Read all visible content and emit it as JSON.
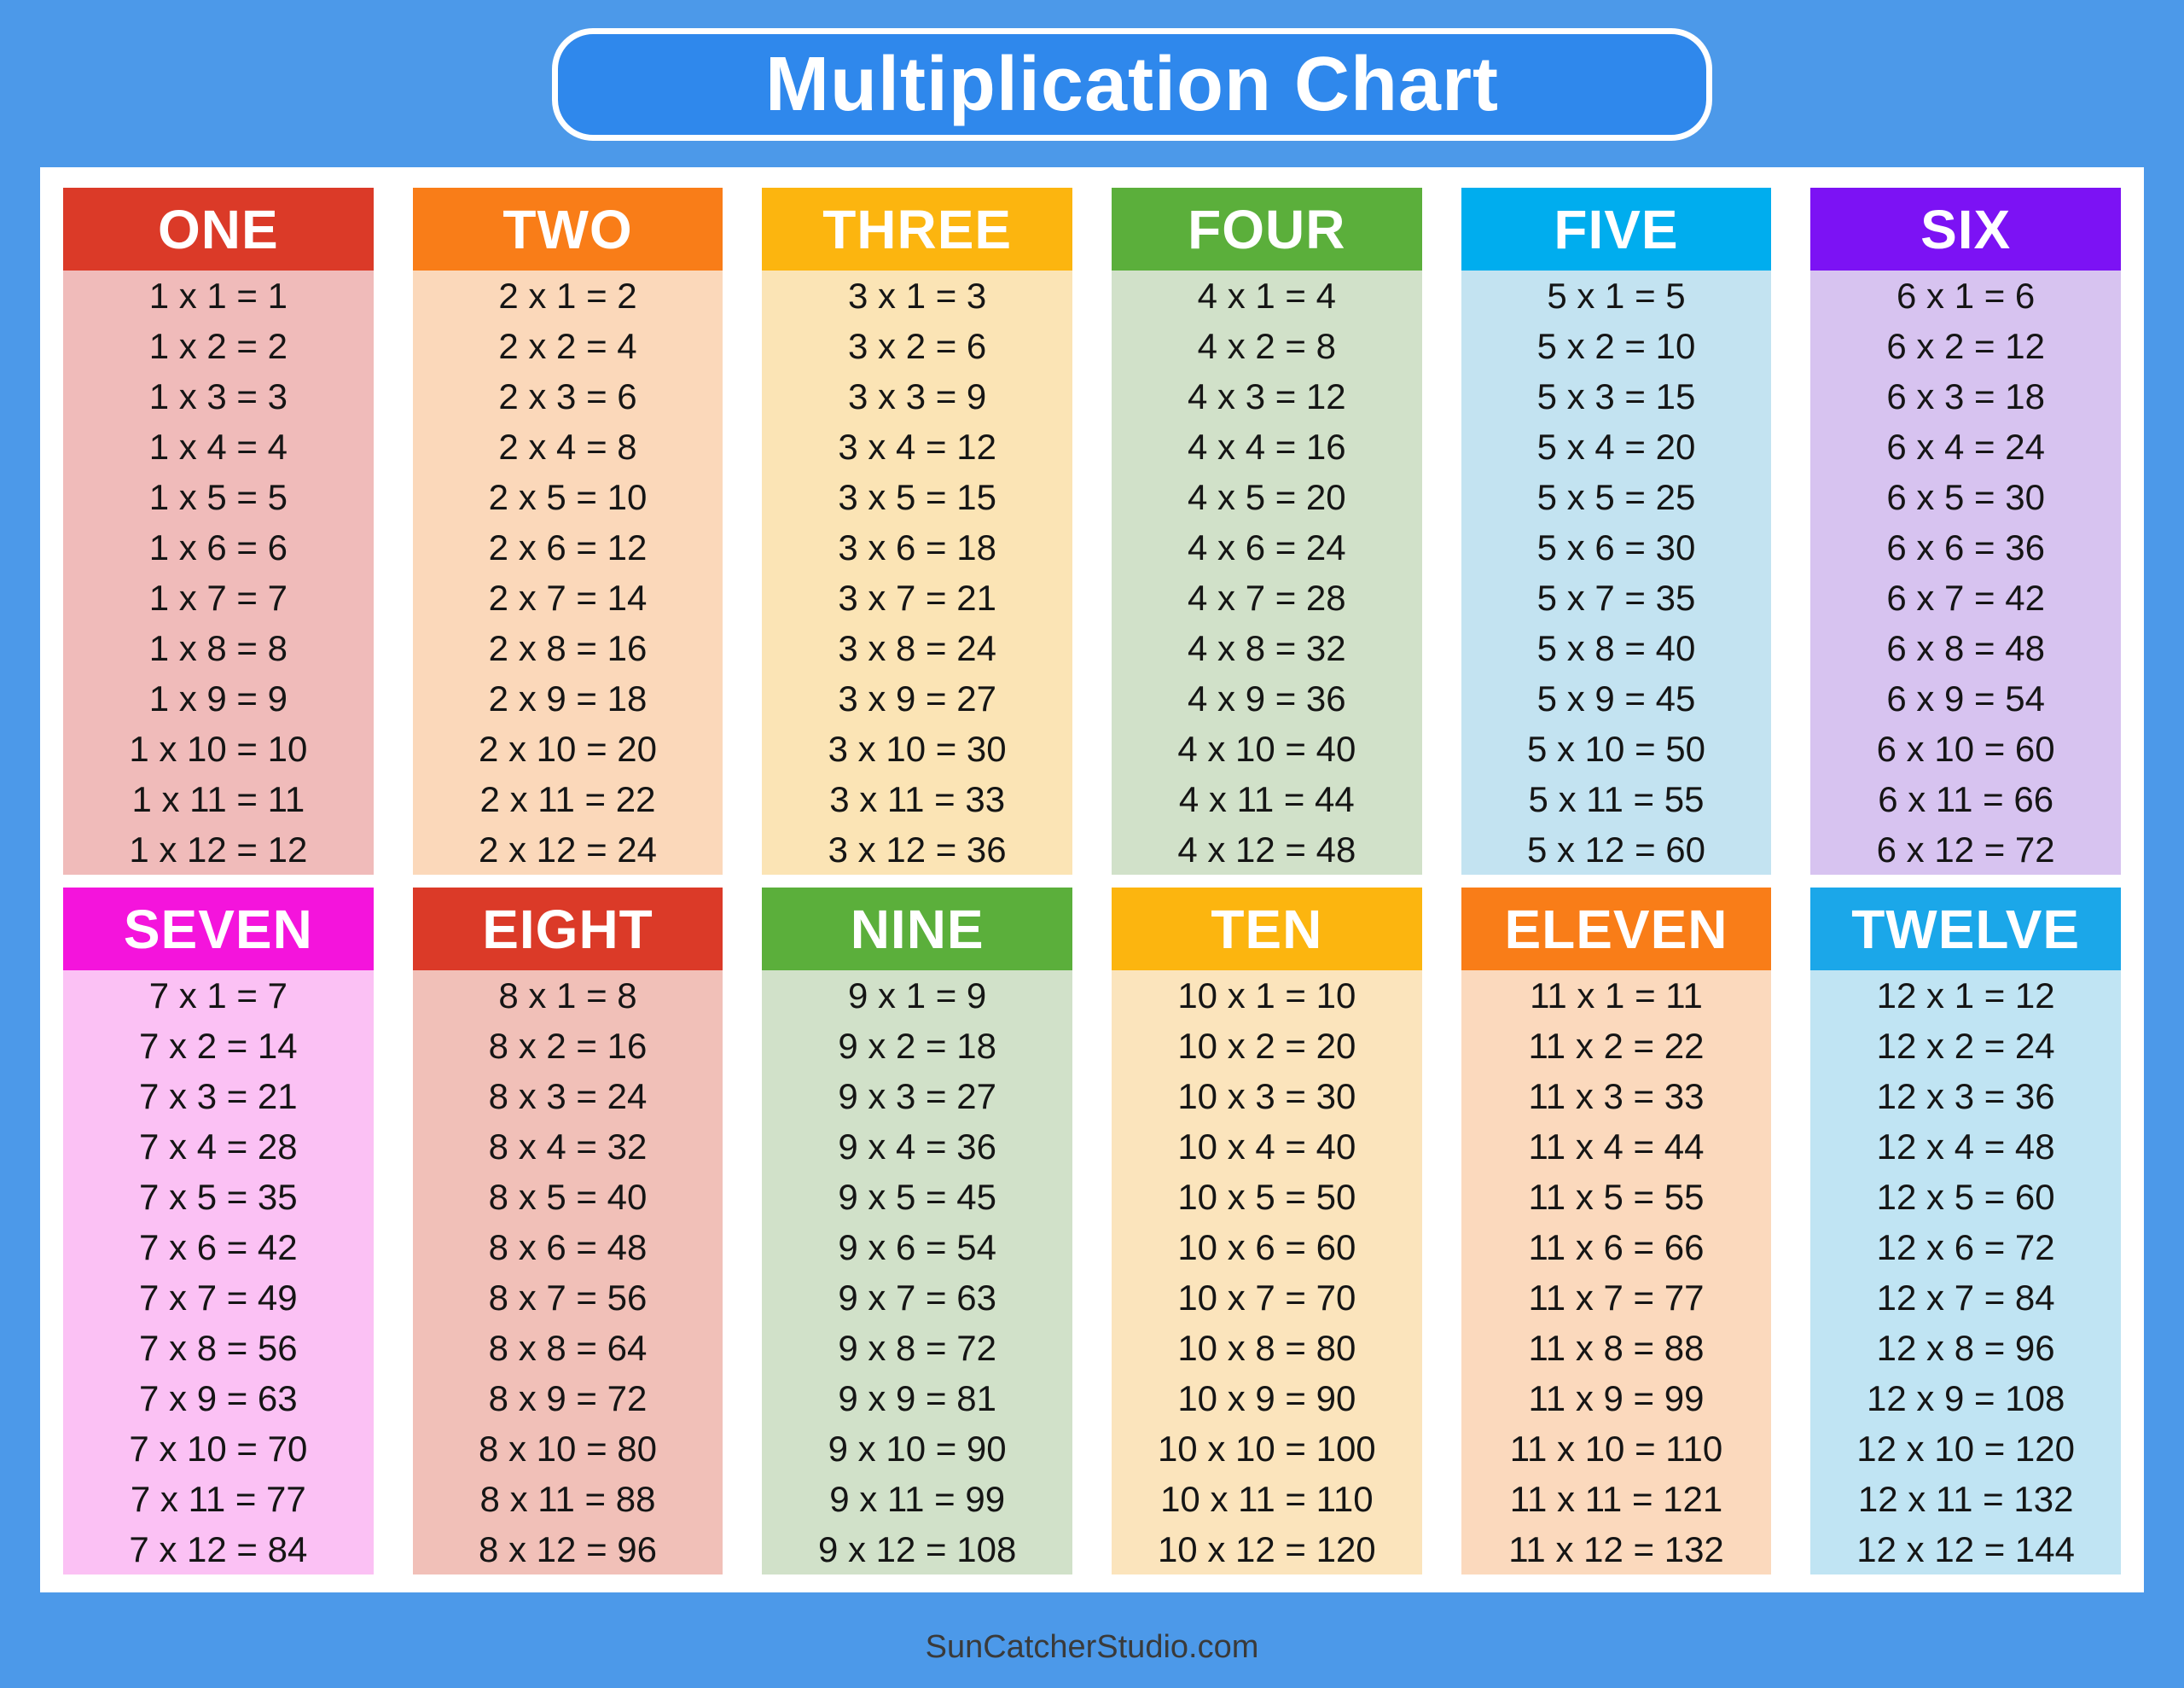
{
  "title": "Multiplication Chart",
  "footer": "SunCatcherStudio.com",
  "colors": {
    "background": "#4C99E9",
    "title_box_fill": "#2F88EC",
    "title_box_border": "#FFFFFF",
    "title_text": "#FFFFFF",
    "panel": "#FFFFFF",
    "header_text": "#FFFFFF",
    "row_text": "#151515",
    "footer_text": "#3A3A3A"
  },
  "tables": [
    {
      "label": "ONE",
      "header_color": "#DB3A28",
      "body_color": "#F0BBBA",
      "rows": [
        "1 x 1 = 1",
        "1 x 2 = 2",
        "1 x 3 = 3",
        "1 x 4 = 4",
        "1 x 5 = 5",
        "1 x 6 = 6",
        "1 x 7 = 7",
        "1 x 8 = 8",
        "1 x 9 = 9",
        "1 x 10 = 10",
        "1 x 11 = 11",
        "1 x 12 = 12"
      ]
    },
    {
      "label": "TWO",
      "header_color": "#F97D18",
      "body_color": "#FBD8BA",
      "rows": [
        "2 x 1 = 2",
        "2 x 2 = 4",
        "2 x 3 = 6",
        "2 x 4 = 8",
        "2 x 5 = 10",
        "2 x 6 = 12",
        "2 x 7 = 14",
        "2 x 8 = 16",
        "2 x 9 = 18",
        "2 x 10 = 20",
        "2 x 11 = 22",
        "2 x 12 = 24"
      ]
    },
    {
      "label": "THREE",
      "header_color": "#FCB50F",
      "body_color": "#FBE4B5",
      "rows": [
        "3 x 1 = 3",
        "3 x 2 = 6",
        "3 x 3 = 9",
        "3 x 4 = 12",
        "3 x 5 = 15",
        "3 x 6 = 18",
        "3 x 7 = 21",
        "3 x 8 = 24",
        "3 x 9 = 27",
        "3 x 10 = 30",
        "3 x 11 = 33",
        "3 x 12 = 36"
      ]
    },
    {
      "label": "FOUR",
      "header_color": "#5BAF3B",
      "body_color": "#D1E1C9",
      "rows": [
        "4 x 1 = 4",
        "4 x 2 = 8",
        "4 x 3 = 12",
        "4 x 4 = 16",
        "4 x 5 = 20",
        "4 x 6 = 24",
        "4 x 7 = 28",
        "4 x 8 = 32",
        "4 x 9 = 36",
        "4 x 10 = 40",
        "4 x 11 = 44",
        "4 x 12 = 48"
      ]
    },
    {
      "label": "FIVE",
      "header_color": "#00ADEE",
      "body_color": "#C3E3F1",
      "rows": [
        "5 x 1 = 5",
        "5 x 2 = 10",
        "5 x 3 = 15",
        "5 x 4 = 20",
        "5 x 5 = 25",
        "5 x 6 = 30",
        "5 x 7 = 35",
        "5 x 8 = 40",
        "5 x 9 = 45",
        "5 x 10 = 50",
        "5 x 11 = 55",
        "5 x 12 = 60"
      ]
    },
    {
      "label": "SIX",
      "header_color": "#7C12F4",
      "body_color": "#D7C3F0",
      "rows": [
        "6 x 1 = 6",
        "6 x 2 = 12",
        "6 x 3 = 18",
        "6 x 4 = 24",
        "6 x 5 = 30",
        "6 x 6 = 36",
        "6 x 7 = 42",
        "6 x 8 = 48",
        "6 x 9 = 54",
        "6 x 10 = 60",
        "6 x 11 = 66",
        "6 x 12 = 72"
      ]
    },
    {
      "label": "SEVEN",
      "header_color": "#F414DC",
      "body_color": "#FBC1F4",
      "rows": [
        "7 x 1 = 7",
        "7 x 2 = 14",
        "7 x 3 = 21",
        "7 x 4 = 28",
        "7 x 5 = 35",
        "7 x 6 = 42",
        "7 x 7 = 49",
        "7 x 8 = 56",
        "7 x 9 = 63",
        "7 x 10 = 70",
        "7 x 11 = 77",
        "7 x 12 = 84"
      ]
    },
    {
      "label": "EIGHT",
      "header_color": "#DB3A28",
      "body_color": "#F1C0B8",
      "rows": [
        "8 x 1 = 8",
        "8 x 2 = 16",
        "8 x 3 = 24",
        "8 x 4 = 32",
        "8 x 5 = 40",
        "8 x 6 = 48",
        "8 x 7 = 56",
        "8 x 8 = 64",
        "8 x 9 = 72",
        "8 x 10 = 80",
        "8 x 11 = 88",
        "8 x 12 = 96"
      ]
    },
    {
      "label": "NINE",
      "header_color": "#5BAF3B",
      "body_color": "#D1E1C9",
      "rows": [
        "9 x 1 = 9",
        "9 x 2 = 18",
        "9 x 3 = 27",
        "9 x 4 = 36",
        "9 x 5 = 45",
        "9 x 6 = 54",
        "9 x 7 = 63",
        "9 x 8 = 72",
        "9 x 9 = 81",
        "9 x 10 = 90",
        "9 x 11 = 99",
        "9 x 12 = 108"
      ]
    },
    {
      "label": "TEN",
      "header_color": "#FCB50F",
      "body_color": "#FBE4BC",
      "rows": [
        "10 x 1 = 10",
        "10 x 2 = 20",
        "10 x 3 = 30",
        "10 x 4 = 40",
        "10 x 5 = 50",
        "10 x 6 = 60",
        "10 x 7 = 70",
        "10 x 8 = 80",
        "10 x 9 = 90",
        "10 x 10 = 100",
        "10 x 11 = 110",
        "10 x 12 = 120"
      ]
    },
    {
      "label": "ELEVEN",
      "header_color": "#F97D18",
      "body_color": "#FBD9BD",
      "rows": [
        "11 x 1 = 11",
        "11 x 2 = 22",
        "11 x 3 = 33",
        "11 x 4 = 44",
        "11 x 5 = 55",
        "11 x 6 = 66",
        "11 x 7 = 77",
        "11 x 8 = 88",
        "11 x 9 = 99",
        "11 x 10 = 110",
        "11 x 11 = 121",
        "11 x 12 = 132"
      ]
    },
    {
      "label": "TWELVE",
      "header_color": "#1BA7E9",
      "body_color": "#C0E4F3",
      "rows": [
        "12 x 1 = 12",
        "12 x 2 = 24",
        "12 x 3 = 36",
        "12 x 4 = 48",
        "12 x 5 = 60",
        "12 x 6 = 72",
        "12 x 7 = 84",
        "12 x 8 = 96",
        "12 x 9 = 108",
        "12 x 10 = 120",
        "12 x 11 = 132",
        "12 x 12 = 144"
      ]
    }
  ],
  "chart_data": {
    "type": "table",
    "title": "Multiplication Chart",
    "categories": [
      "ONE",
      "TWO",
      "THREE",
      "FOUR",
      "FIVE",
      "SIX",
      "SEVEN",
      "EIGHT",
      "NINE",
      "TEN",
      "ELEVEN",
      "TWELVE"
    ],
    "factors": [
      1,
      2,
      3,
      4,
      5,
      6,
      7,
      8,
      9,
      10,
      11,
      12
    ],
    "multipliers": [
      1,
      2,
      3,
      4,
      5,
      6,
      7,
      8,
      9,
      10,
      11,
      12
    ],
    "products": [
      [
        1,
        2,
        3,
        4,
        5,
        6,
        7,
        8,
        9,
        10,
        11,
        12
      ],
      [
        2,
        4,
        6,
        8,
        10,
        12,
        14,
        16,
        18,
        20,
        22,
        24
      ],
      [
        3,
        6,
        9,
        12,
        15,
        18,
        21,
        24,
        27,
        30,
        33,
        36
      ],
      [
        4,
        8,
        12,
        16,
        20,
        24,
        28,
        32,
        36,
        40,
        44,
        48
      ],
      [
        5,
        10,
        15,
        20,
        25,
        30,
        35,
        40,
        45,
        50,
        55,
        60
      ],
      [
        6,
        12,
        18,
        24,
        30,
        36,
        42,
        48,
        54,
        60,
        66,
        72
      ],
      [
        7,
        14,
        21,
        28,
        35,
        42,
        49,
        56,
        63,
        70,
        77,
        84
      ],
      [
        8,
        16,
        24,
        32,
        40,
        48,
        56,
        64,
        72,
        80,
        88,
        96
      ],
      [
        9,
        18,
        27,
        36,
        45,
        54,
        63,
        72,
        81,
        90,
        99,
        108
      ],
      [
        10,
        20,
        30,
        40,
        50,
        60,
        70,
        80,
        90,
        100,
        110,
        120
      ],
      [
        11,
        22,
        33,
        44,
        55,
        66,
        77,
        88,
        99,
        110,
        121,
        132
      ],
      [
        12,
        24,
        36,
        48,
        60,
        72,
        84,
        96,
        108,
        120,
        132,
        144
      ]
    ],
    "layout": "6 columns x 2 rows of mini-tables, 12 facts per table"
  }
}
